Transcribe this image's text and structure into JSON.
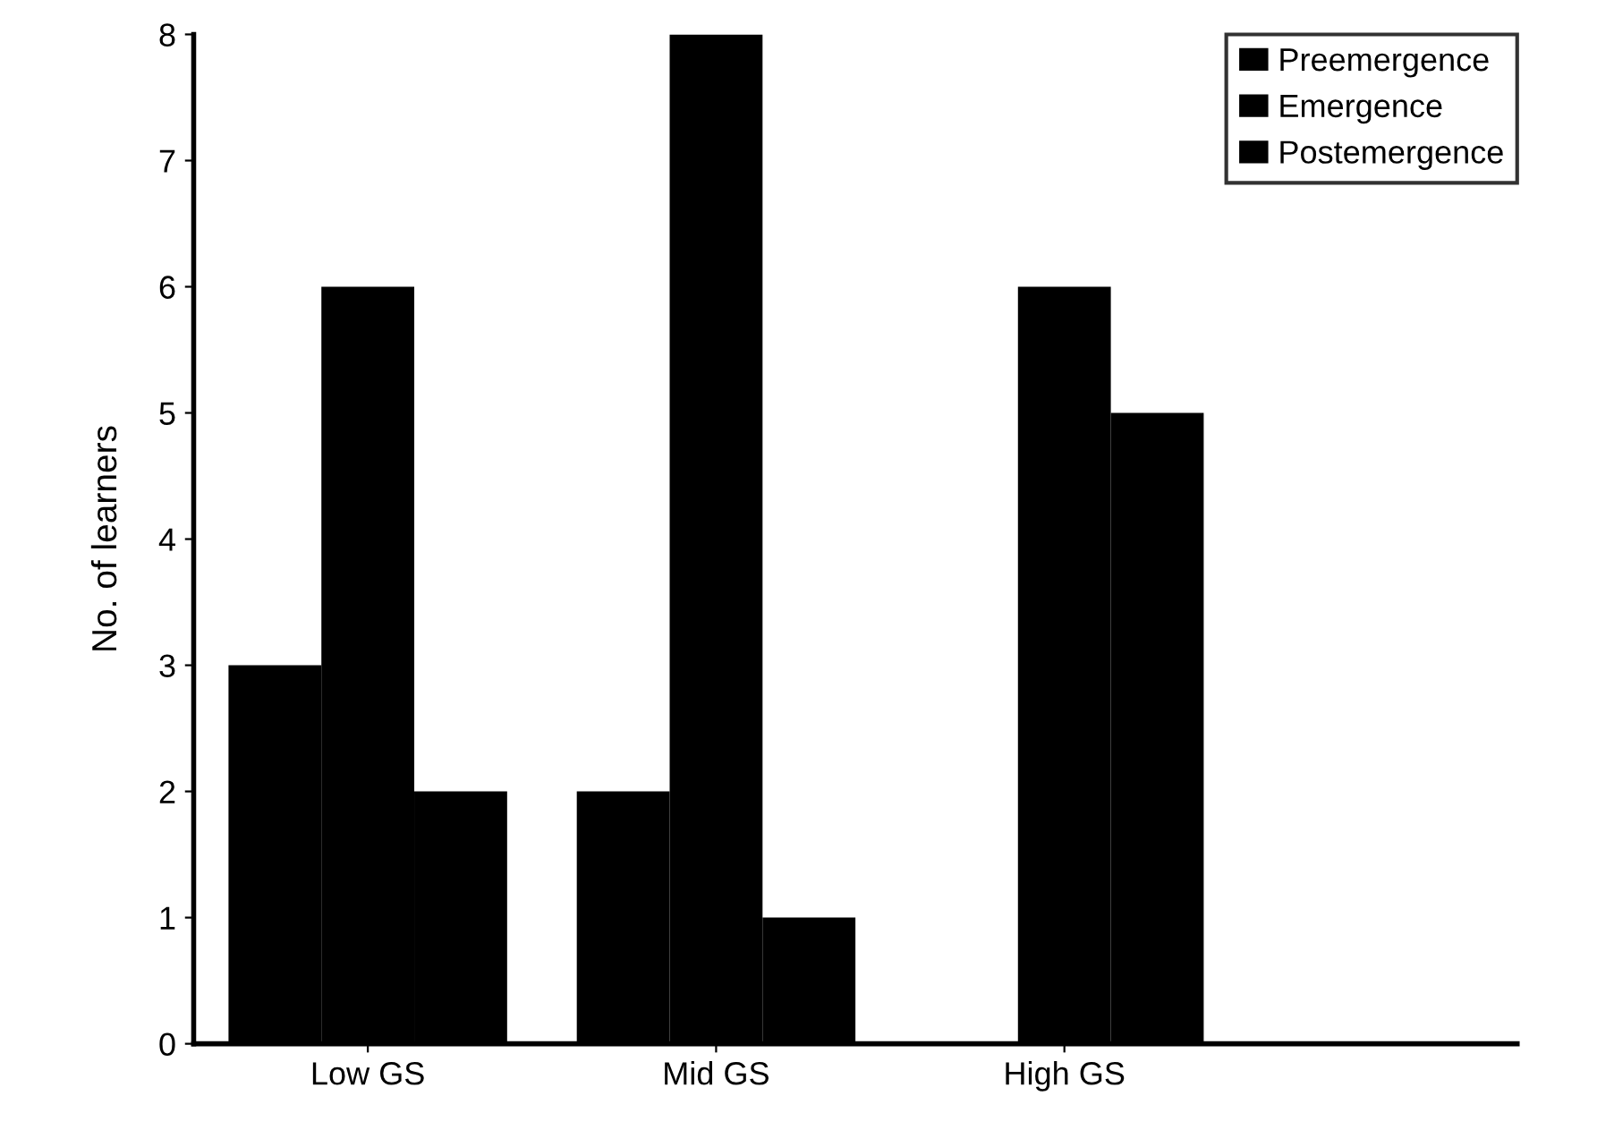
{
  "chart_data": {
    "type": "bar",
    "ylabel": "No. of learners",
    "categories": [
      "Low GS",
      "Mid GS",
      "High GS"
    ],
    "series": [
      {
        "name": "Preemergence",
        "color": "#000000",
        "values": [
          3,
          2,
          0
        ]
      },
      {
        "name": "Emergence",
        "color": "#000000",
        "values": [
          6,
          8,
          6
        ]
      },
      {
        "name": "Postemergence",
        "color": "#000000",
        "values": [
          2,
          1,
          5
        ]
      }
    ],
    "ylim": [
      0,
      8
    ],
    "yticks": [
      0,
      1,
      2,
      3,
      4,
      5,
      6,
      7,
      8
    ],
    "grid": false,
    "legend": "top right"
  }
}
